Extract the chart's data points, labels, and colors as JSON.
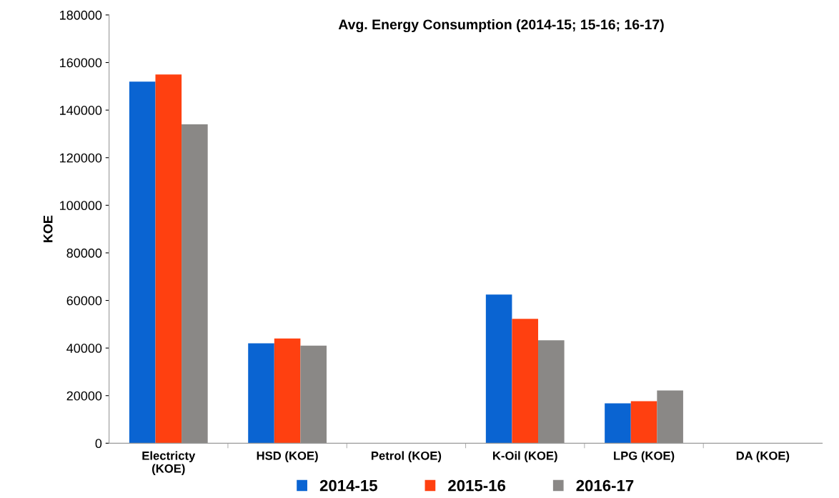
{
  "chart_data": {
    "type": "bar",
    "title": "Avg. Energy Consumption (2014-15; 15-16; 16-17)",
    "ylabel": "KOE",
    "categories": [
      "Electricty\n(KOE)",
      "HSD (KOE)",
      "Petrol (KOE)",
      "K-Oil (KOE)",
      "LPG (KOE)",
      "DA (KOE)"
    ],
    "series": [
      {
        "name": "2014-15",
        "color": "#0a64d2",
        "values": [
          152000,
          42000,
          0,
          62500,
          16800,
          0
        ]
      },
      {
        "name": "2015-16",
        "color": "#ff4010",
        "values": [
          155000,
          44000,
          0,
          52300,
          17700,
          0
        ]
      },
      {
        "name": "2016-17",
        "color": "#8a8886",
        "values": [
          134000,
          41000,
          0,
          43300,
          22200,
          0
        ]
      }
    ],
    "ylim": [
      0,
      180000
    ],
    "yticks": [
      0,
      20000,
      40000,
      60000,
      80000,
      100000,
      120000,
      140000,
      160000,
      180000
    ],
    "grid": false,
    "legend": "bottom"
  }
}
